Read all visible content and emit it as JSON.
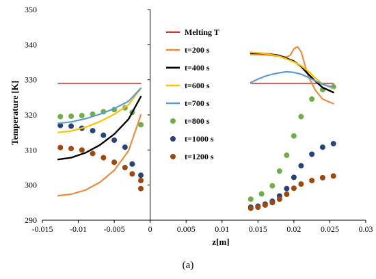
{
  "caption": "(a)",
  "chart_data": {
    "type": "line",
    "xlabel": "z[m]",
    "ylabel": "Temperature [K]",
    "xlim": [
      -0.015,
      0.03
    ],
    "ylim": [
      290,
      350
    ],
    "xticks": [
      "-0.015",
      "-0.01",
      "-0.005",
      "0",
      "0.005",
      "0.01",
      "0.015",
      "0.02",
      "0.025",
      "0.03"
    ],
    "yticks": [
      "290",
      "300",
      "310",
      "320",
      "330",
      "340",
      "350"
    ],
    "grid": false,
    "legend_position": "right-center",
    "series": [
      {
        "name": "Melting T",
        "kind": "line",
        "color": "#e8262a",
        "width": 1.6,
        "segments": [
          [
            [
              -0.0128,
              329
            ],
            [
              -0.0013,
              329
            ]
          ],
          [
            [
              0.014,
              329
            ],
            [
              0.0255,
              329
            ]
          ]
        ]
      },
      {
        "name": "t=200 s",
        "kind": "line",
        "color": "#ef8a3c",
        "width": 2.2,
        "segments": [
          [
            [
              -0.0128,
              297
            ],
            [
              -0.011,
              297.4
            ],
            [
              -0.009,
              298.6
            ],
            [
              -0.007,
              300.8
            ],
            [
              -0.005,
              304.2
            ],
            [
              -0.003,
              309.8
            ],
            [
              -0.0013,
              320
            ]
          ],
          [
            [
              0.014,
              337.2
            ],
            [
              0.016,
              337.1
            ],
            [
              0.018,
              336.7
            ],
            [
              0.019,
              336.5
            ],
            [
              0.0195,
              337
            ],
            [
              0.02,
              338.8
            ],
            [
              0.0205,
              339.4
            ],
            [
              0.021,
              338
            ],
            [
              0.022,
              331
            ],
            [
              0.023,
              327
            ],
            [
              0.024,
              324.5
            ],
            [
              0.0255,
              323.2
            ]
          ]
        ]
      },
      {
        "name": "t=400 s",
        "kind": "line",
        "color": "#000000",
        "width": 2.4,
        "segments": [
          [
            [
              -0.0128,
              307.3
            ],
            [
              -0.011,
              307.8
            ],
            [
              -0.009,
              309.2
            ],
            [
              -0.007,
              311.4
            ],
            [
              -0.005,
              314.5
            ],
            [
              -0.003,
              318.8
            ],
            [
              -0.0013,
              325.2
            ]
          ],
          [
            [
              0.014,
              337.6
            ],
            [
              0.016,
              337.5
            ],
            [
              0.018,
              336.9
            ],
            [
              0.02,
              335.3
            ],
            [
              0.021,
              333.8
            ],
            [
              0.022,
              331.6
            ],
            [
              0.023,
              329.6
            ],
            [
              0.024,
              327.8
            ],
            [
              0.0255,
              326.4
            ]
          ]
        ]
      },
      {
        "name": "t=600 s",
        "kind": "line",
        "color": "#ffc000",
        "width": 2.2,
        "segments": [
          [
            [
              -0.0128,
              315
            ],
            [
              -0.011,
              315.4
            ],
            [
              -0.009,
              316.5
            ],
            [
              -0.007,
              318.1
            ],
            [
              -0.005,
              320.2
            ],
            [
              -0.003,
              322.9
            ],
            [
              -0.0013,
              327.6
            ]
          ],
          [
            [
              0.014,
              337.8
            ],
            [
              0.016,
              337.5
            ],
            [
              0.018,
              336.7
            ],
            [
              0.02,
              335.1
            ],
            [
              0.021,
              334
            ],
            [
              0.022,
              332.4
            ],
            [
              0.023,
              330.5
            ],
            [
              0.024,
              328.8
            ],
            [
              0.0255,
              327.5
            ]
          ]
        ]
      },
      {
        "name": "t=700 s",
        "kind": "line",
        "color": "#5b9bd5",
        "width": 2.2,
        "segments": [
          [
            [
              -0.0128,
              317.6
            ],
            [
              -0.011,
              318
            ],
            [
              -0.009,
              318.9
            ],
            [
              -0.007,
              320.2
            ],
            [
              -0.005,
              321.8
            ],
            [
              -0.003,
              323.9
            ],
            [
              -0.0013,
              327.6
            ]
          ],
          [
            [
              0.014,
              329.2
            ],
            [
              0.015,
              330.2
            ],
            [
              0.016,
              331
            ],
            [
              0.017,
              331.6
            ],
            [
              0.018,
              332
            ],
            [
              0.019,
              332.3
            ],
            [
              0.02,
              332.1
            ],
            [
              0.021,
              331.6
            ],
            [
              0.022,
              330.7
            ],
            [
              0.023,
              329.7
            ],
            [
              0.024,
              328.7
            ],
            [
              0.0255,
              327.8
            ]
          ]
        ]
      },
      {
        "name": "t=800 s",
        "kind": "scatter",
        "color": "#70ad47",
        "points": [
          [
            -0.0125,
            319.5
          ],
          [
            -0.011,
            319.6
          ],
          [
            -0.0095,
            319.8
          ],
          [
            -0.008,
            320.2
          ],
          [
            -0.0065,
            320.9
          ],
          [
            -0.005,
            321.5
          ],
          [
            -0.0035,
            322
          ],
          [
            -0.0025,
            320.7
          ],
          [
            -0.0013,
            317.2
          ],
          [
            0.014,
            296
          ],
          [
            0.0155,
            297.5
          ],
          [
            0.017,
            299.8
          ],
          [
            0.018,
            304
          ],
          [
            0.019,
            308.5
          ],
          [
            0.02,
            314
          ],
          [
            0.021,
            319.5
          ],
          [
            0.0225,
            324.5
          ],
          [
            0.024,
            327.2
          ],
          [
            0.0255,
            328
          ]
        ]
      },
      {
        "name": "t=1000 s",
        "kind": "scatter",
        "color": "#264478",
        "points": [
          [
            -0.0125,
            317
          ],
          [
            -0.011,
            316.8
          ],
          [
            -0.0095,
            316.2
          ],
          [
            -0.008,
            315.5
          ],
          [
            -0.0065,
            314.2
          ],
          [
            -0.005,
            312.8
          ],
          [
            -0.0035,
            310.8
          ],
          [
            -0.0025,
            306
          ],
          [
            -0.0013,
            302.8
          ],
          [
            0.014,
            293.7
          ],
          [
            0.015,
            294
          ],
          [
            0.016,
            294.6
          ],
          [
            0.017,
            295.4
          ],
          [
            0.018,
            296.9
          ],
          [
            0.019,
            299
          ],
          [
            0.02,
            302.2
          ],
          [
            0.021,
            305.5
          ],
          [
            0.0225,
            308.8
          ],
          [
            0.024,
            310.8
          ],
          [
            0.0255,
            311.8
          ]
        ]
      },
      {
        "name": "t=1200 s",
        "kind": "scatter",
        "color": "#9e480e",
        "points": [
          [
            -0.0125,
            310.7
          ],
          [
            -0.011,
            310.4
          ],
          [
            -0.0095,
            310
          ],
          [
            -0.008,
            309
          ],
          [
            -0.0065,
            307.8
          ],
          [
            -0.005,
            306.5
          ],
          [
            -0.0035,
            305
          ],
          [
            -0.0025,
            303.2
          ],
          [
            -0.0013,
            301.3
          ],
          [
            -0.0013,
            299
          ],
          [
            0.014,
            293.4
          ],
          [
            0.015,
            293.7
          ],
          [
            0.016,
            294.3
          ],
          [
            0.017,
            295
          ],
          [
            0.018,
            296
          ],
          [
            0.019,
            297.4
          ],
          [
            0.02,
            299.1
          ],
          [
            0.021,
            300.3
          ],
          [
            0.0225,
            301.3
          ],
          [
            0.024,
            302.1
          ],
          [
            0.0255,
            302.6
          ]
        ]
      }
    ]
  }
}
